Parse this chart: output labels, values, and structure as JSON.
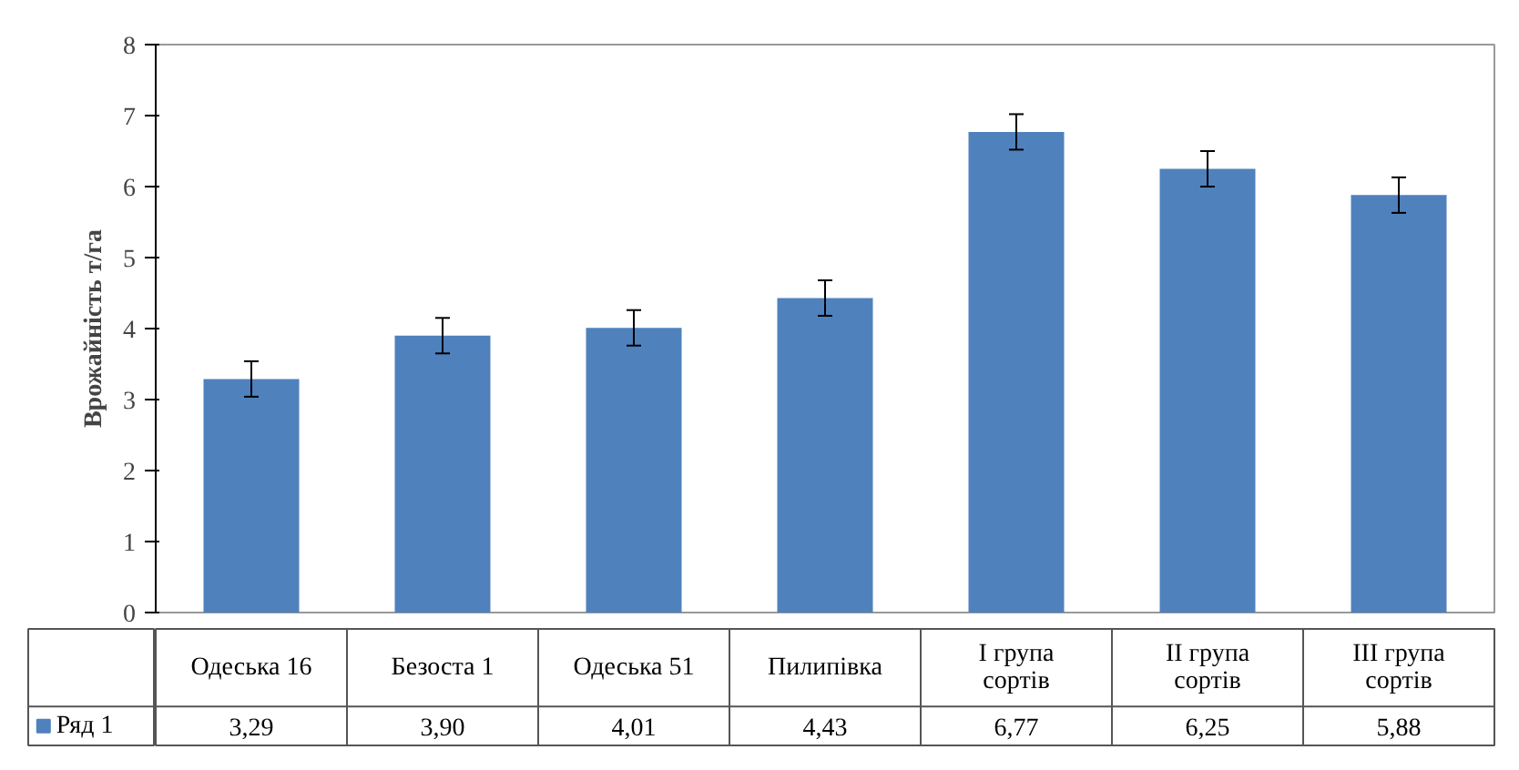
{
  "chart_data": {
    "type": "bar",
    "ylabel": "Врожайність т/га",
    "categories": [
      "Одеська 16",
      "Безоста 1",
      "Одеська 51",
      "Пилипівка",
      "I група сортів",
      "II група сортів",
      "III група сортів"
    ],
    "series": [
      {
        "name": "Ряд 1",
        "color": "#4f81bd",
        "values": [
          3.29,
          3.9,
          4.01,
          4.43,
          6.77,
          6.25,
          5.88
        ],
        "errors": [
          0.25,
          0.25,
          0.25,
          0.25,
          0.25,
          0.25,
          0.25
        ],
        "value_labels": [
          "3,29",
          "3,90",
          "4,01",
          "4,43",
          "6,77",
          "6,25",
          "5,88"
        ]
      }
    ],
    "ylim": [
      0,
      8
    ],
    "yticks": [
      0,
      1,
      2,
      3,
      4,
      5,
      6,
      7,
      8
    ],
    "grid": false,
    "legend": "bottom"
  }
}
